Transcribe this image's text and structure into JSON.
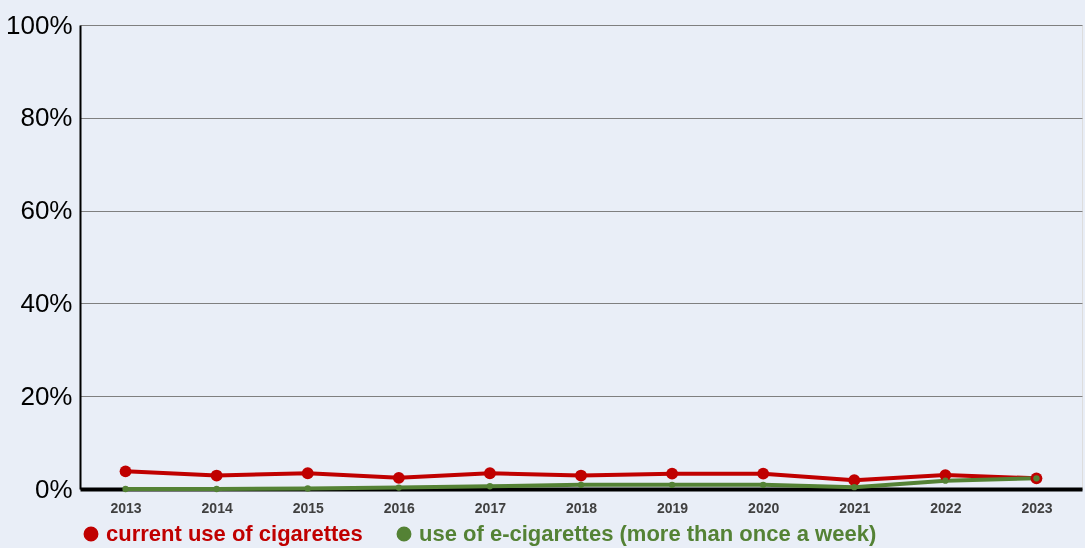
{
  "chart_data": {
    "type": "line",
    "categories": [
      "2013",
      "2014",
      "2015",
      "2016",
      "2017",
      "2018",
      "2019",
      "2020",
      "2021",
      "2022",
      "2023"
    ],
    "series": [
      {
        "name": "current use of cigarettes",
        "color": "#c00000",
        "values": [
          3.8,
          2.9,
          3.4,
          2.4,
          3.4,
          2.9,
          3.3,
          3.3,
          1.9,
          3.0,
          2.3
        ]
      },
      {
        "name": "use of e-cigarettes (more than once a week)",
        "color": "#548235",
        "values": [
          0,
          0,
          0.1,
          0.3,
          0.6,
          0.9,
          0.9,
          0.9,
          0.4,
          1.8,
          2.3
        ]
      }
    ],
    "ylim": [
      0,
      100
    ],
    "yticks": [
      {
        "value": 0,
        "label": "0%"
      },
      {
        "value": 20,
        "label": "20%"
      },
      {
        "value": 40,
        "label": "40%"
      },
      {
        "value": 60,
        "label": "60%"
      },
      {
        "value": 80,
        "label": "80%"
      },
      {
        "value": 100,
        "label": "100%"
      }
    ],
    "grid": "y",
    "legend": "bottom",
    "marker": "circle",
    "line_style": "solid"
  }
}
